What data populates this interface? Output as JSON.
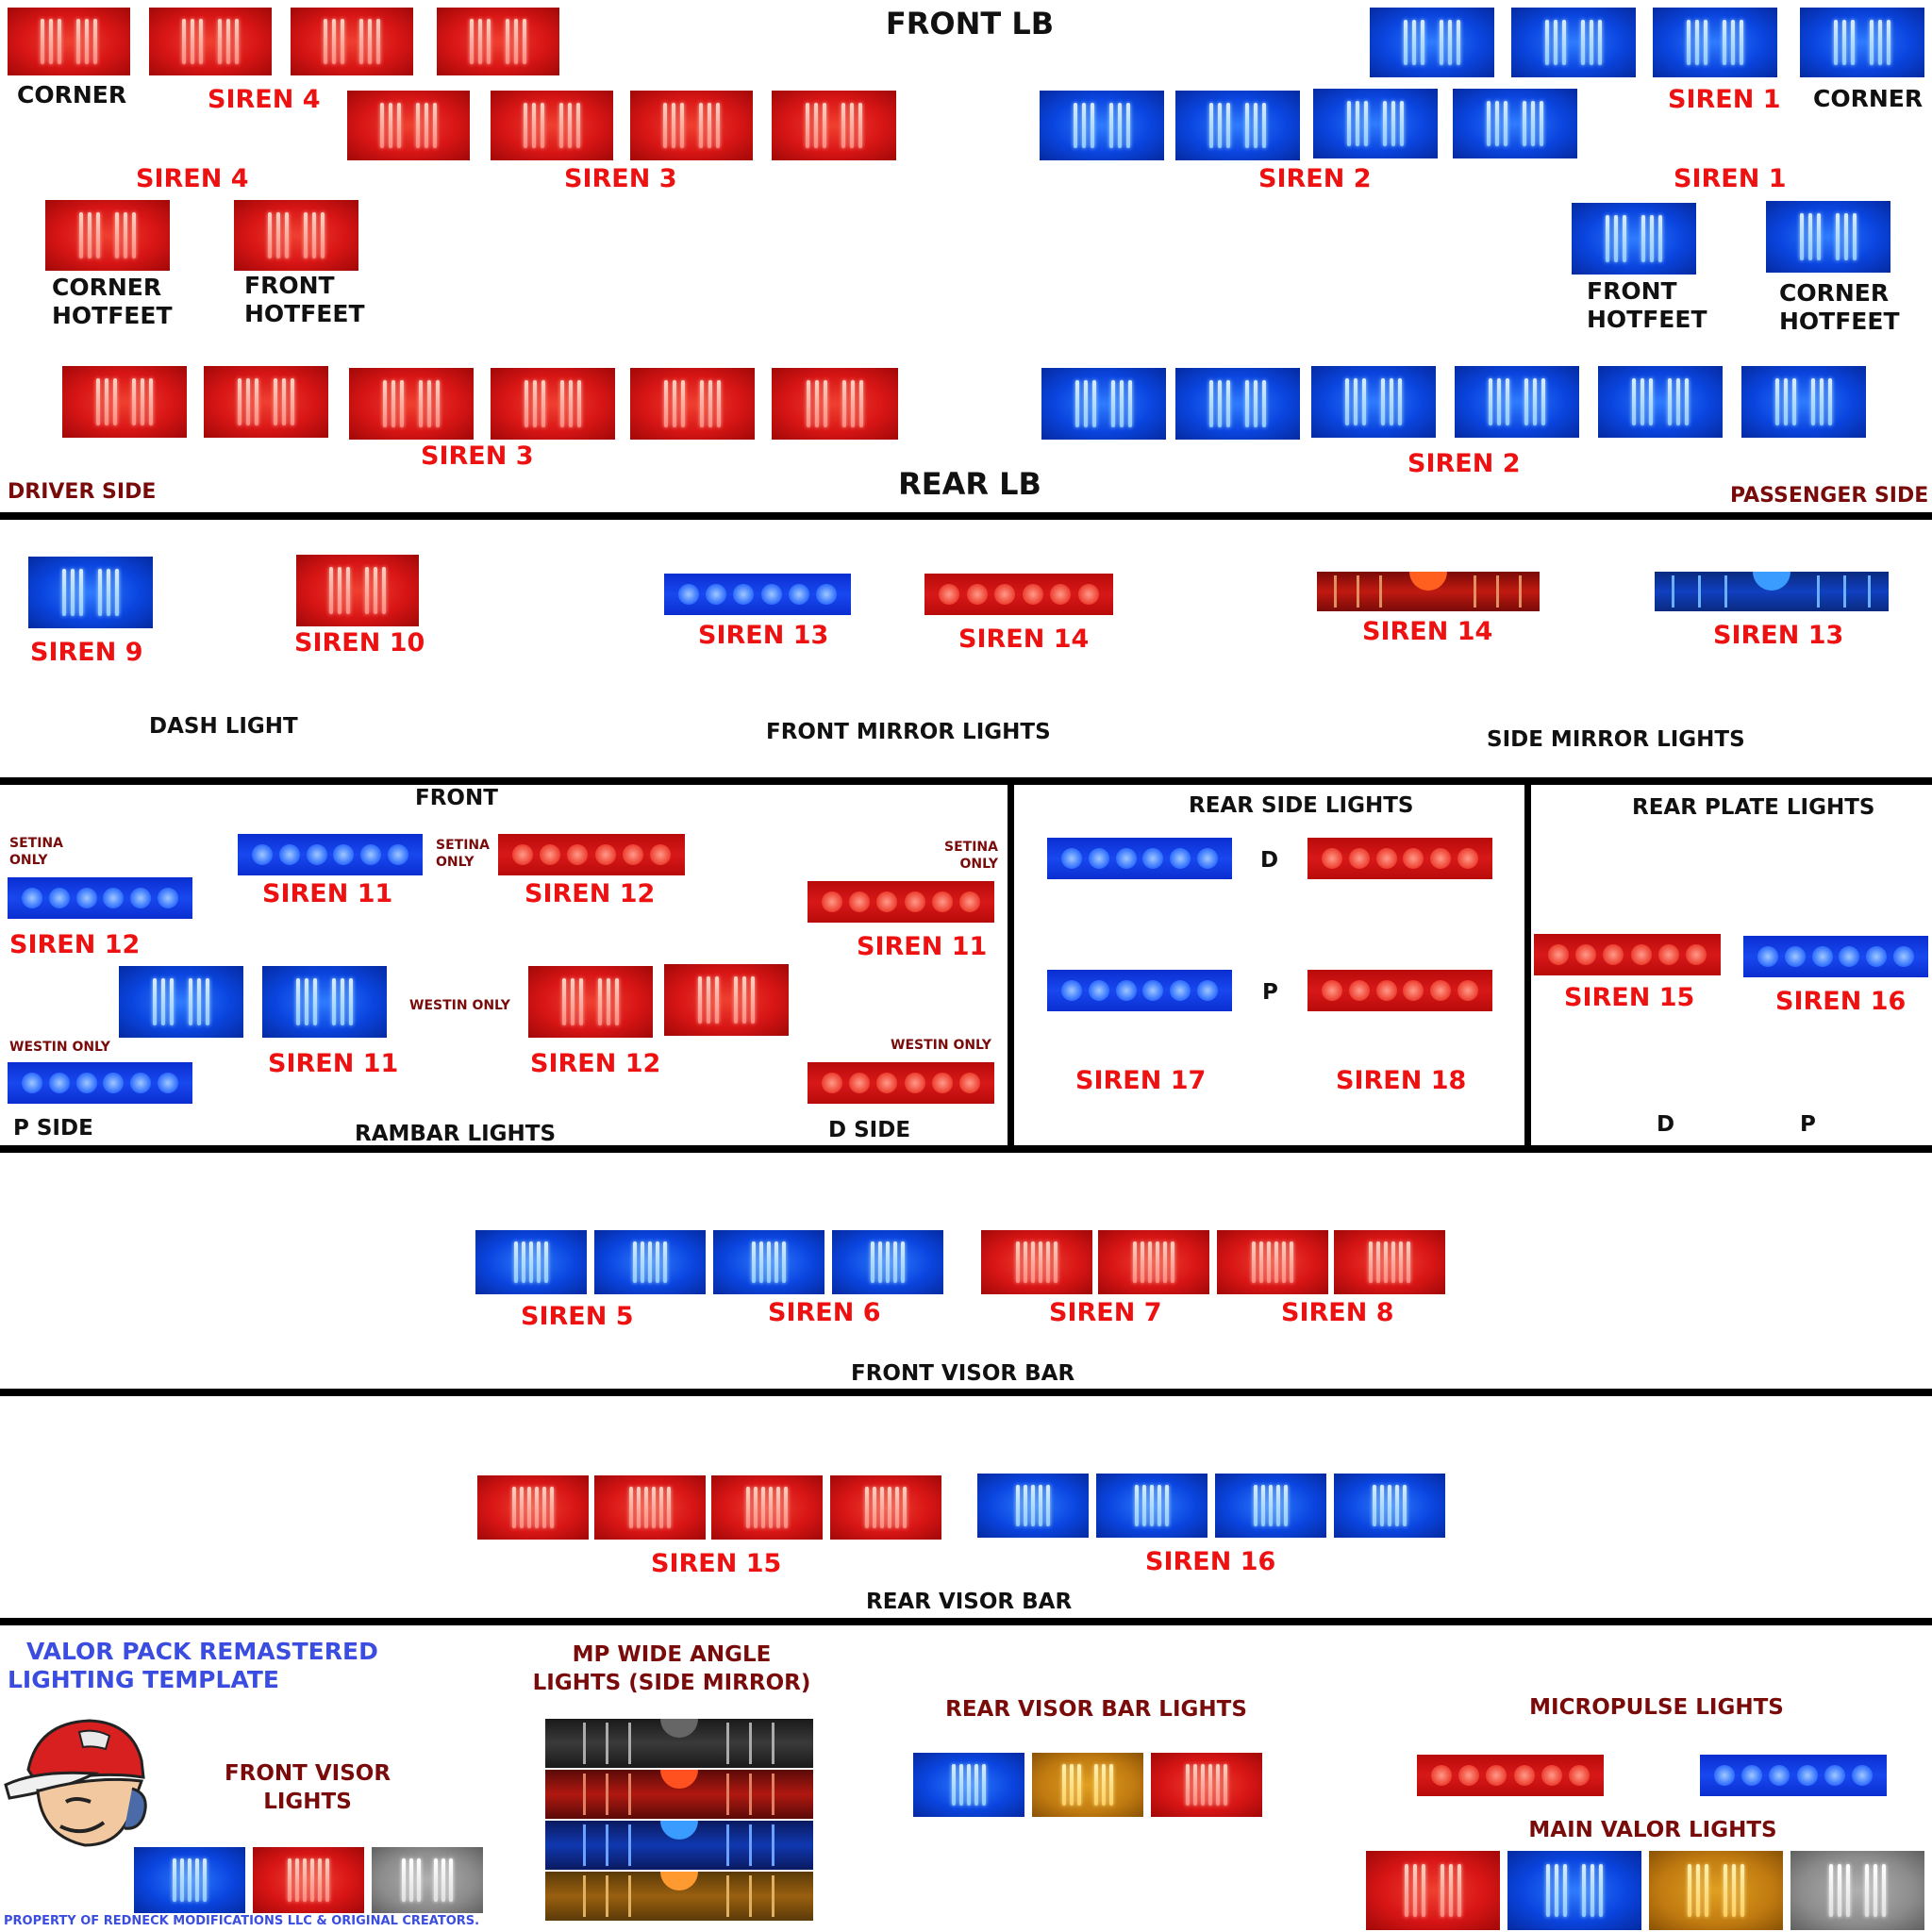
{
  "headers": {
    "front_lb": "FRONT LB",
    "rear_lb": "REAR LB",
    "driver_side": "DRIVER SIDE",
    "passenger_side": "PASSENGER SIDE"
  },
  "front_lb_labels": {
    "corner_left": "CORNER",
    "siren4_a": "SIREN 4",
    "siren4_b": "SIREN 4",
    "siren3_a": "SIREN 3",
    "siren2_a": "SIREN 2",
    "siren1_a": "SIREN 1",
    "siren1_b": "SIREN 1",
    "corner_right": "CORNER",
    "corner_hotfeet_l1": "CORNER",
    "corner_hotfeet_l2": "HOTFEET",
    "front_hotfeet_l1": "FRONT",
    "front_hotfeet_l2": "HOTFEET",
    "front_hotfeet_r1": "FRONT",
    "front_hotfeet_r2": "HOTFEET",
    "corner_hotfeet_r1": "CORNER",
    "corner_hotfeet_r2": "HOTFEET",
    "siren3_rear": "SIREN 3",
    "siren2_rear": "SIREN 2"
  },
  "dash_section": {
    "siren9": "SIREN 9",
    "siren10": "SIREN 10",
    "siren13_a": "SIREN 13",
    "siren14_a": "SIREN 14",
    "siren14_b": "SIREN 14",
    "siren13_b": "SIREN 13",
    "dash_light": "DASH LIGHT",
    "front_mirror": "FRONT MIRROR LIGHTS",
    "side_mirror": "SIDE MIRROR LIGHTS"
  },
  "rambar": {
    "front": "FRONT",
    "setina_only": "SETINA ONLY",
    "westin_only": "WESTIN ONLY",
    "siren11": "SIREN 11",
    "siren12": "SIREN 12",
    "p_side": "P SIDE",
    "d_side": "D SIDE",
    "title": "RAMBAR LIGHTS"
  },
  "rear_side": {
    "title": "REAR SIDE LIGHTS",
    "d": "D",
    "p": "P",
    "siren17": "SIREN 17",
    "siren18": "SIREN 18"
  },
  "rear_plate": {
    "title": "REAR PLATE LIGHTS",
    "siren15": "SIREN 15",
    "siren16": "SIREN 16",
    "d": "D",
    "p": "P"
  },
  "front_visor": {
    "siren5": "SIREN 5",
    "siren6": "SIREN 6",
    "siren7": "SIREN 7",
    "siren8": "SIREN 8",
    "title": "FRONT VISOR BAR"
  },
  "rear_visor": {
    "siren15": "SIREN 15",
    "siren16": "SIREN 16",
    "title": "REAR VISOR BAR"
  },
  "footer": {
    "template_title_1": "VALOR PACK REMASTERED",
    "template_title_2": "LIGHTING TEMPLATE",
    "front_visor_lights_1": "FRONT VISOR",
    "front_visor_lights_2": "LIGHTS",
    "mp_wide_1": "MP WIDE ANGLE",
    "mp_wide_2": "LIGHTS (SIDE MIRROR)",
    "rear_visor_bar_lights": "REAR VISOR BAR LIGHTS",
    "micropulse": "MICROPULSE LIGHTS",
    "main_valor": "MAIN VALOR LIGHTS",
    "property": "PROPERTY OF REDNECK MODIFICATIONS LLC & ORIGINAL CREATORS."
  },
  "colors": {
    "red": "#d81515",
    "blue": "#0a45e0",
    "amber": "#c07a10",
    "grey": "#8c8c8c",
    "label_red": "#ee1111",
    "maroon": "#7a0b0b",
    "title_blue": "#3a4de0"
  },
  "icons": [
    "mascot-logo-icon"
  ]
}
